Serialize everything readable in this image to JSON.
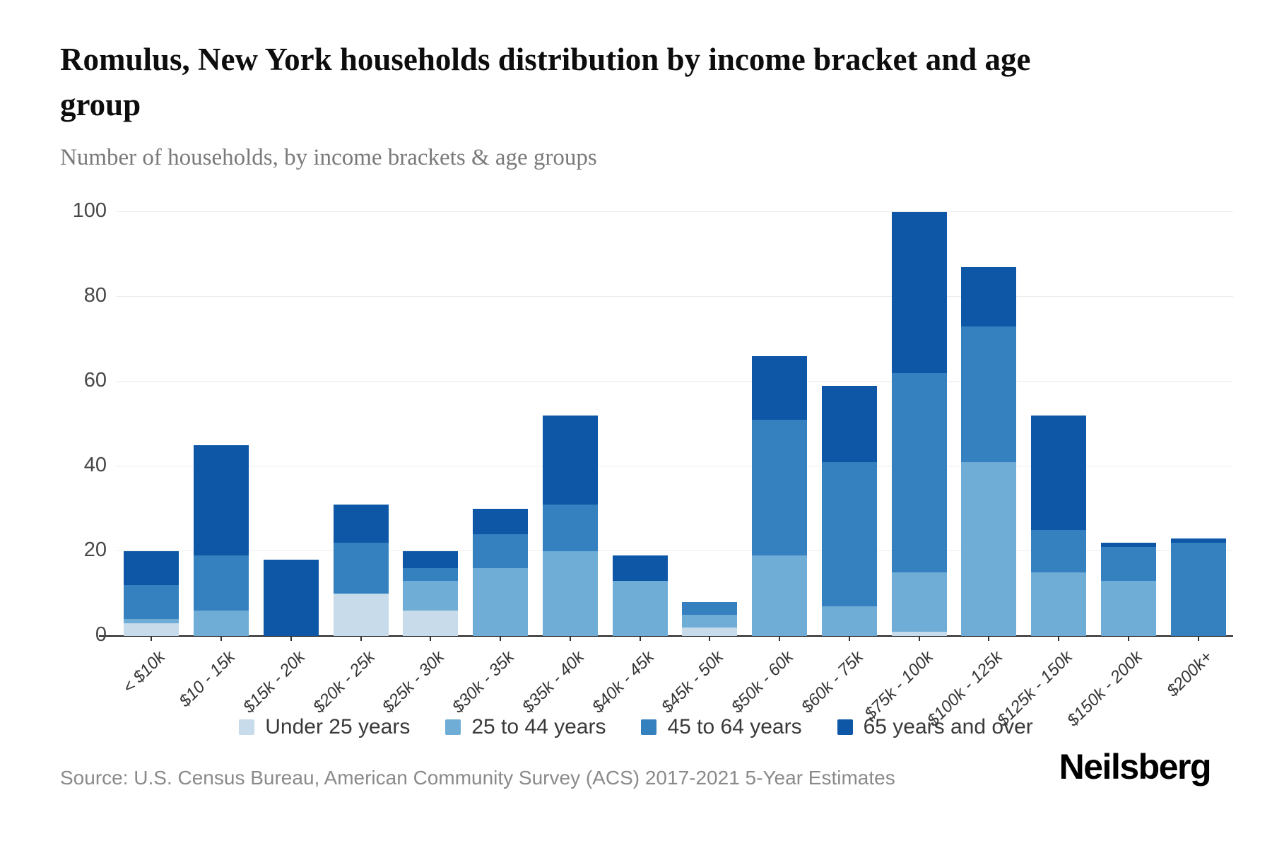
{
  "header": {
    "title": "Romulus, New York households distribution by income bracket and age group",
    "subtitle": "Number of households, by income brackets & age groups"
  },
  "chart_data": {
    "type": "bar",
    "stacked": true,
    "title": "Romulus, New York households distribution by income bracket and age group",
    "subtitle": "Number of households, by income brackets & age groups",
    "xlabel": "",
    "ylabel": "Number of households",
    "ylim": [
      0,
      100
    ],
    "yticks": [
      0,
      20,
      40,
      60,
      80,
      100
    ],
    "grid": true,
    "legend_position": "bottom",
    "categories": [
      "< $10k",
      "$10 - 15k",
      "$15k - 20k",
      "$20k - 25k",
      "$25k - 30k",
      "$30k - 35k",
      "$35k - 40k",
      "$40k - 45k",
      "$45k - 50k",
      "$50k - 60k",
      "$60k - 75k",
      "$75k - 100k",
      "$100k - 125k",
      "$125k - 150k",
      "$150k - 200k",
      "$200k+"
    ],
    "series": [
      {
        "name": "Under 25 years",
        "color": "#c7dbea",
        "values": [
          3,
          0,
          0,
          10,
          6,
          0,
          0,
          0,
          2,
          0,
          0,
          1,
          0,
          0,
          0,
          0
        ]
      },
      {
        "name": "25 to 44 years",
        "color": "#6fadd6",
        "values": [
          1,
          6,
          0,
          0,
          7,
          16,
          20,
          13,
          3,
          19,
          7,
          14,
          41,
          15,
          13,
          0
        ]
      },
      {
        "name": "45 to 64 years",
        "color": "#3581bf",
        "values": [
          8,
          13,
          0,
          12,
          3,
          8,
          11,
          0,
          3,
          32,
          34,
          47,
          32,
          10,
          8,
          22
        ]
      },
      {
        "name": "65 years and over",
        "color": "#0d57a6",
        "values": [
          8,
          26,
          18,
          9,
          4,
          6,
          21,
          6,
          0,
          15,
          18,
          38,
          14,
          27,
          1,
          1
        ]
      }
    ],
    "totals": [
      20,
      45,
      18,
      31,
      20,
      30,
      52,
      19,
      8,
      66,
      59,
      100,
      87,
      52,
      22,
      23
    ]
  },
  "footer": {
    "source": "Source: U.S. Census Bureau, American Community Survey (ACS) 2017-2021 5-Year Estimates",
    "brand": "Neilsberg"
  }
}
